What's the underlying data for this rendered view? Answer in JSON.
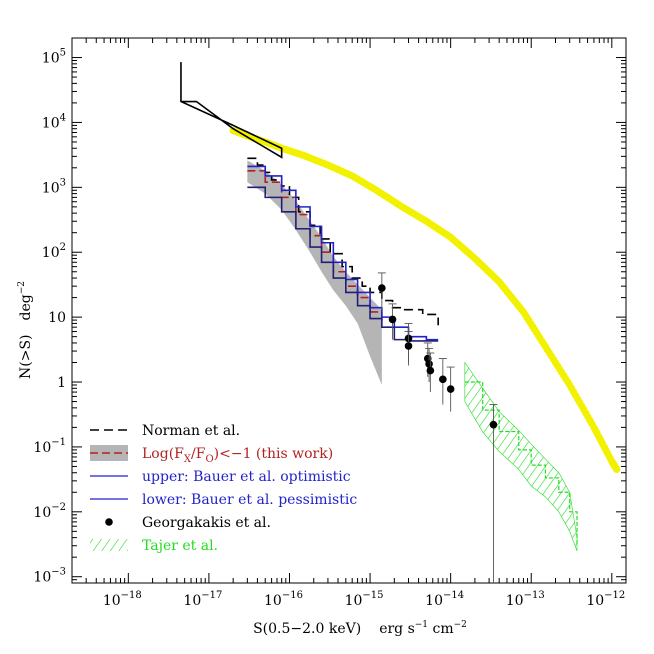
{
  "chart_data": {
    "type": "line",
    "xscale": "log",
    "yscale": "log",
    "xlim": [
      2e-19,
      1.5e-12
    ],
    "ylim": [
      0.0008,
      200000
    ],
    "xlabel": {
      "base": "S(0.5−2.0 keV)",
      "units": "erg s",
      "e1": "−1",
      "mid": " cm",
      "e2": "−2"
    },
    "ylabel": {
      "a": "N(>S)",
      "b": "deg",
      "e": "−2"
    },
    "x_ticks": [
      {
        "v": 1e-18,
        "e": "−18"
      },
      {
        "v": 1e-17,
        "e": "−17"
      },
      {
        "v": 1e-16,
        "e": "−16"
      },
      {
        "v": 1e-15,
        "e": "−15"
      },
      {
        "v": 1e-14,
        "e": "−14"
      },
      {
        "v": 1e-13,
        "e": "−13"
      },
      {
        "v": 1e-12,
        "e": "−12"
      }
    ],
    "y_ticks": [
      {
        "v": 0.001,
        "mant": "10",
        "e": "−3"
      },
      {
        "v": 0.01,
        "mant": "10",
        "e": "−2"
      },
      {
        "v": 0.1,
        "mant": "10",
        "e": "−1"
      },
      {
        "v": 1,
        "mant": "1",
        "e": ""
      },
      {
        "v": 10,
        "mant": "10",
        "e": ""
      },
      {
        "v": 100,
        "mant": "10",
        "e": "2"
      },
      {
        "v": 1000,
        "mant": "10",
        "e": "3"
      },
      {
        "v": 10000,
        "mant": "10",
        "e": "4"
      },
      {
        "v": 100000,
        "mant": "10",
        "e": "5"
      }
    ],
    "series": [
      {
        "name": "yellow_curve",
        "color": "#f2f200",
        "x": [
          2e-17,
          3e-17,
          5e-17,
          8e-17,
          1.5e-16,
          3e-16,
          6e-16,
          1.2e-15,
          2.5e-15,
          5e-15,
          1e-14,
          2e-14,
          4e-14,
          8e-14,
          1.5e-13,
          3e-13,
          6e-13,
          1e-12,
          1.15e-12
        ],
        "y": [
          7500,
          6200,
          5000,
          4000,
          3100,
          2200,
          1500,
          900,
          500,
          300,
          170,
          80,
          35,
          12,
          3.5,
          0.9,
          0.2,
          0.06,
          0.045
        ]
      },
      {
        "name": "Norman et al. (upper box)",
        "color": "#000000",
        "x": [
          4.5e-18,
          4.5e-18,
          2e-17,
          8e-17,
          8e-17,
          2e-17,
          7e-18,
          4.5e-18
        ],
        "y": [
          85000,
          21000,
          9000,
          4000,
          2900,
          8000,
          21000,
          21000
        ]
      },
      {
        "name": "Norman et al.",
        "color": "#000000",
        "dash": "9,5",
        "x": [
          3e-17,
          4e-17,
          5e-17,
          6e-17,
          8e-17,
          1e-16,
          1.3e-16,
          1.8e-16,
          2.4e-16,
          3.2e-16,
          4.5e-16,
          6e-16,
          8e-16,
          1e-15,
          1.4e-15,
          1.9e-15,
          2.6e-15,
          3.5e-15,
          4.5e-15,
          6e-15,
          7e-15
        ],
        "y": [
          2800,
          2200,
          1700,
          1300,
          1050,
          700,
          420,
          260,
          160,
          95,
          60,
          40,
          30,
          24,
          18,
          14,
          13,
          13,
          11,
          11,
          7.5
        ]
      },
      {
        "name": "Log(F_X/F_O)<−1 (this work)",
        "color": "#b22222",
        "dash": "8,4",
        "x": [
          3e-17,
          5e-17,
          8e-17,
          1.2e-16,
          1.8e-16,
          2.5e-16,
          3.5e-16,
          5e-16,
          7e-16,
          1e-15,
          1.4e-15
        ],
        "y": [
          1800,
          1200,
          700,
          380,
          180,
          100,
          50,
          30,
          20,
          12,
          8
        ]
      },
      {
        "name": "upper: Bauer et al. optimistic",
        "color": "#2222cc",
        "x": [
          3e-17,
          5e-17,
          8e-17,
          1.2e-16,
          1.8e-16,
          2.5e-16,
          3.5e-16,
          5e-16,
          7e-16,
          1e-15,
          1.4e-15,
          2e-15,
          3e-15,
          5e-15,
          7e-15
        ],
        "y": [
          2100,
          1500,
          900,
          500,
          250,
          140,
          70,
          38,
          24,
          14,
          10,
          7,
          5,
          4.5,
          4.5
        ]
      },
      {
        "name": "lower: Bauer et al. pessimistic",
        "color": "#1f1f7a",
        "x": [
          3e-17,
          5e-17,
          8e-17,
          1.2e-16,
          1.8e-16,
          2.5e-16,
          3.5e-16,
          5e-16,
          7e-16,
          1e-15,
          1.4e-15,
          2e-15,
          3e-15,
          5e-15,
          7e-15
        ],
        "y": [
          1000,
          700,
          420,
          230,
          120,
          70,
          40,
          24,
          15,
          9.5,
          7,
          4.5,
          4.3,
          4.3,
          4.3
        ]
      },
      {
        "name": "Georgakakis et al.",
        "color": "#000000",
        "marker": "circle",
        "x": [
          1.4e-15,
          1.9e-15,
          3e-15,
          3e-15,
          5.2e-15,
          5.4e-15,
          5.6e-15,
          8e-15,
          1e-14,
          3.4e-14
        ],
        "y": [
          28,
          9.2,
          4.7,
          3.6,
          2.3,
          1.9,
          1.5,
          1.1,
          0.78,
          0.22
        ],
        "yerr_hi": [
          48,
          16,
          8,
          6,
          4,
          3.3,
          2.8,
          2.3,
          1.7,
          0.45
        ],
        "yerr_lo": [
          13,
          4.5,
          2,
          1.8,
          1.2,
          1,
          0.7,
          0.45,
          0.35,
          0.0008
        ]
      }
    ],
    "bands": [
      {
        "name": "Log(F_X/F_O)<−1 (this work)",
        "color": "#b5b5b5",
        "x": [
          3e-17,
          5e-17,
          8e-17,
          1.2e-16,
          1.8e-16,
          2.5e-16,
          3.5e-16,
          5e-16,
          7e-16,
          1e-15,
          1.4e-15
        ],
        "lo": [
          1200,
          800,
          450,
          220,
          100,
          50,
          26,
          15,
          8,
          2.5,
          0.9
        ],
        "hi": [
          2600,
          1800,
          1100,
          620,
          300,
          170,
          85,
          50,
          32,
          20,
          13
        ]
      },
      {
        "name": "Tajer et al.",
        "color": "#22dd22",
        "hatch": true,
        "x": [
          1.5e-14,
          2.5e-14,
          4e-14,
          7e-14,
          1e-13,
          1.5e-13,
          2.2e-13,
          3e-13,
          3.7e-13
        ],
        "lo": [
          0.5,
          0.17,
          0.085,
          0.045,
          0.025,
          0.017,
          0.01,
          0.005,
          0.0025
        ],
        "hi": [
          2.0,
          0.8,
          0.35,
          0.18,
          0.11,
          0.065,
          0.04,
          0.02,
          0.004
        ]
      }
    ],
    "legend": {
      "position": "bottom-left",
      "entries": [
        {
          "label": "Norman et al.",
          "color": "#000000",
          "style": "dashed",
          "text_color": "#000000"
        },
        {
          "label": "Log(F",
          "sub1": "X",
          "mid": "/F",
          "sub2": "O",
          "end": ")<−1 (this work)",
          "color": "#b22222",
          "style": "band",
          "text_color": "#b22222"
        },
        {
          "label": "upper: Bauer et al. optimistic",
          "color": "#2222cc",
          "style": "line",
          "text_color": "#2222cc"
        },
        {
          "label": "lower: Bauer et al. pessimistic",
          "color": "#2222cc",
          "style": "line",
          "text_color": "#2222cc"
        },
        {
          "label": "Georgakakis et al.",
          "color": "#000000",
          "style": "dot",
          "text_color": "#000000"
        },
        {
          "label": "Tajer et al.",
          "color": "#22dd22",
          "style": "hatch",
          "text_color": "#22dd22"
        }
      ]
    }
  }
}
